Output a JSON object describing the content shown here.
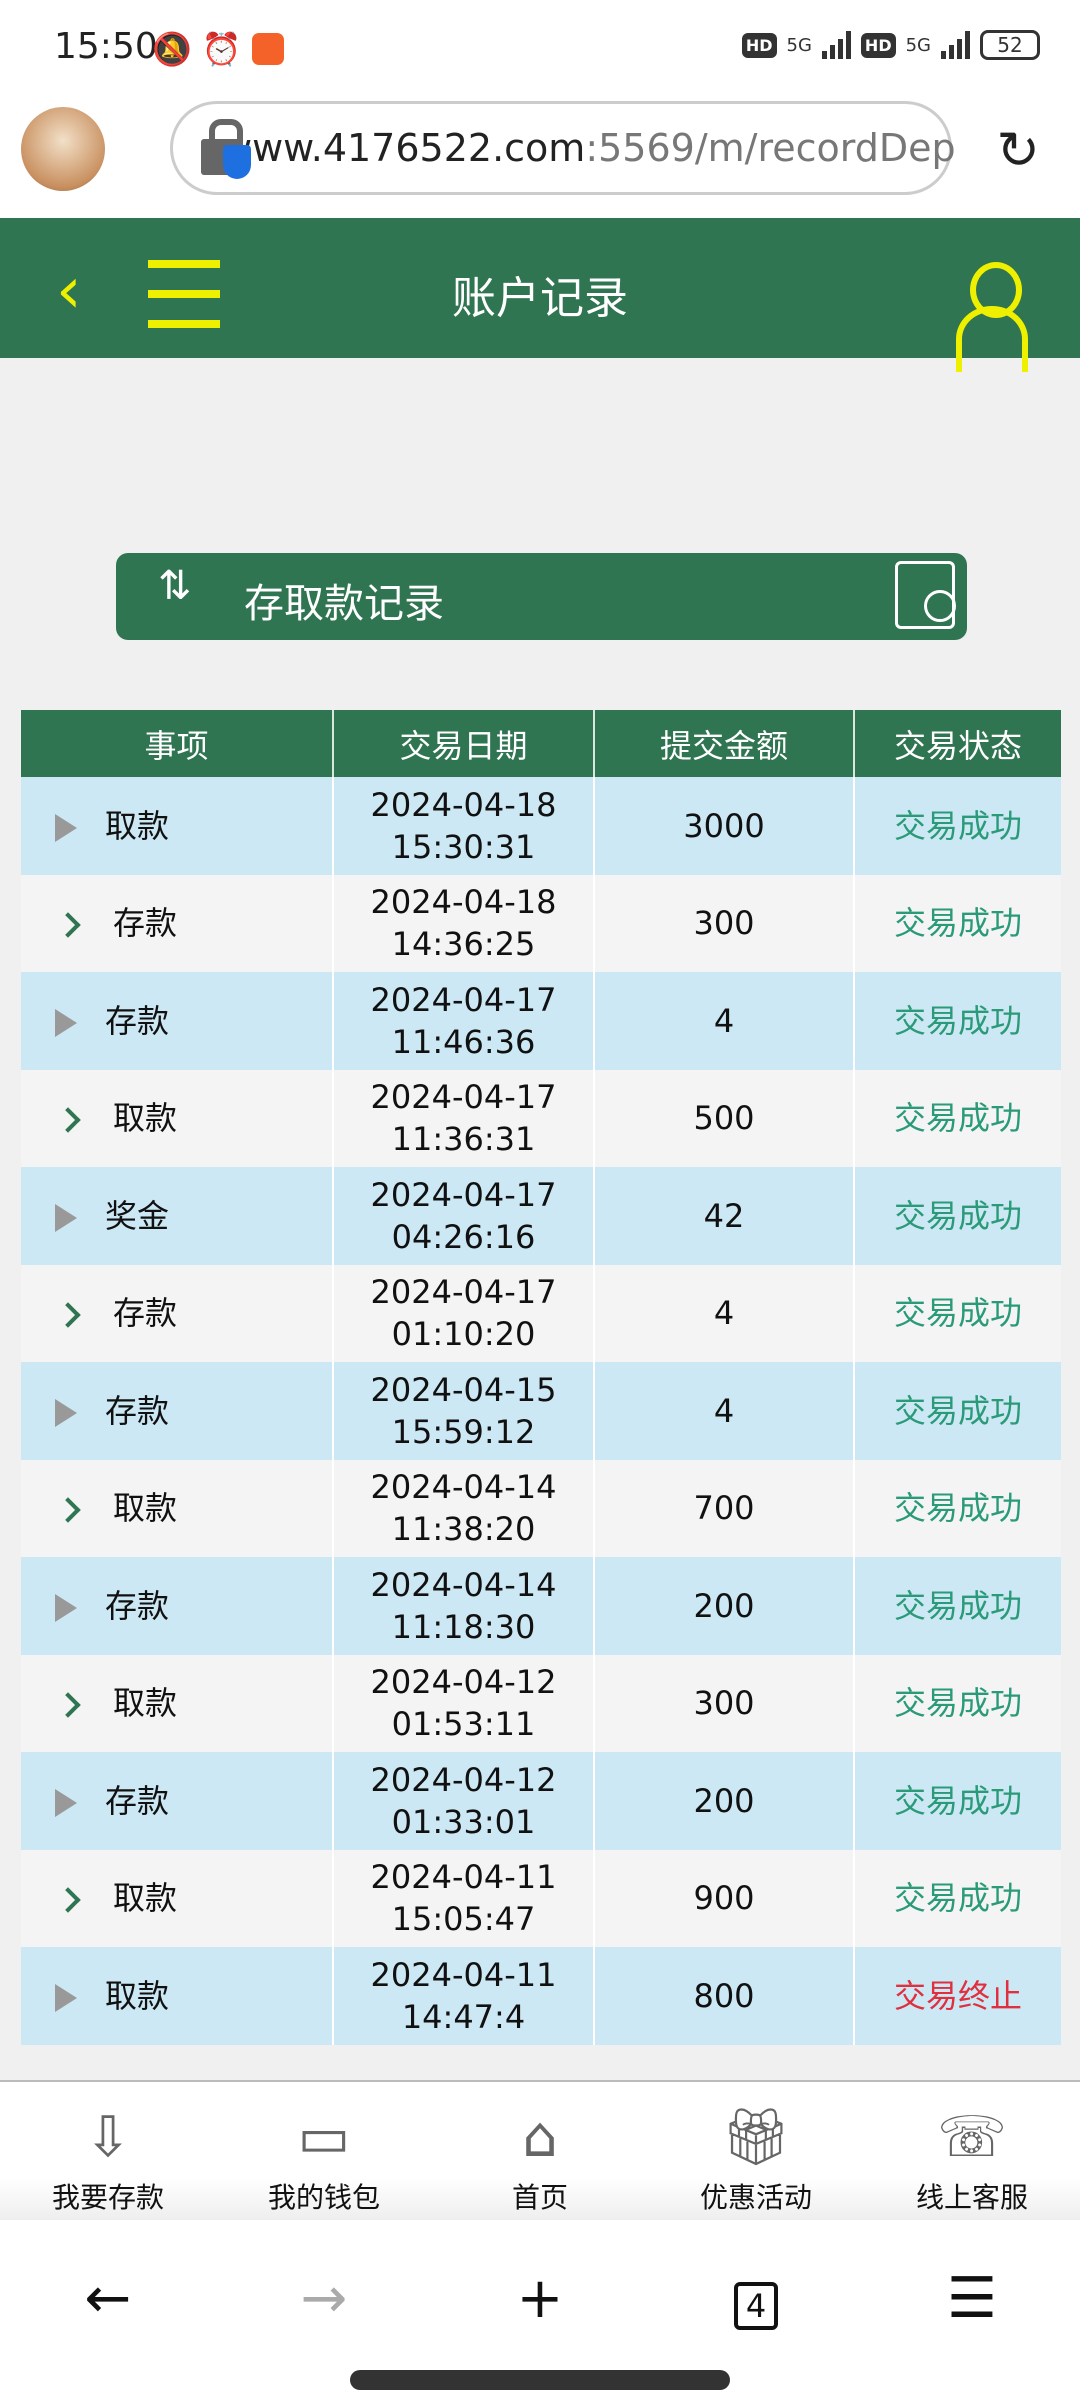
{
  "status_bar": {
    "time": "15:50",
    "battery": "52",
    "network": "5G"
  },
  "browser": {
    "url_host": "www.4176522.com",
    "url_rest": ":5569/m/recordDep",
    "tab_count": "4"
  },
  "header": {
    "title": "账户记录"
  },
  "banner": {
    "title": "存取款记录"
  },
  "table": {
    "columns": [
      "事项",
      "交易日期",
      "提交金额",
      "交易状态"
    ],
    "rows": [
      {
        "item": "取款",
        "date": "2024-04-18",
        "time": "15:30:31",
        "amount": "3000",
        "status": "交易成功"
      },
      {
        "item": "存款",
        "date": "2024-04-18",
        "time": "14:36:25",
        "amount": "300",
        "status": "交易成功"
      },
      {
        "item": "存款",
        "date": "2024-04-17",
        "time": "11:46:36",
        "amount": "4",
        "status": "交易成功"
      },
      {
        "item": "取款",
        "date": "2024-04-17",
        "time": "11:36:31",
        "amount": "500",
        "status": "交易成功"
      },
      {
        "item": "奖金",
        "date": "2024-04-17",
        "time": "04:26:16",
        "amount": "42",
        "status": "交易成功"
      },
      {
        "item": "存款",
        "date": "2024-04-17",
        "time": "01:10:20",
        "amount": "4",
        "status": "交易成功"
      },
      {
        "item": "存款",
        "date": "2024-04-15",
        "time": "15:59:12",
        "amount": "4",
        "status": "交易成功"
      },
      {
        "item": "取款",
        "date": "2024-04-14",
        "time": "11:38:20",
        "amount": "700",
        "status": "交易成功"
      },
      {
        "item": "存款",
        "date": "2024-04-14",
        "time": "11:18:30",
        "amount": "200",
        "status": "交易成功"
      },
      {
        "item": "取款",
        "date": "2024-04-12",
        "time": "01:53:11",
        "amount": "300",
        "status": "交易成功"
      },
      {
        "item": "存款",
        "date": "2024-04-12",
        "time": "01:33:01",
        "amount": "200",
        "status": "交易成功"
      },
      {
        "item": "取款",
        "date": "2024-04-11",
        "time": "15:05:47",
        "amount": "900",
        "status": "交易成功"
      },
      {
        "item": "取款",
        "date": "2024-04-11",
        "time": "14:47:4",
        "amount": "800",
        "status": "交易终止"
      }
    ]
  },
  "tabbar": [
    {
      "label": "我要存款",
      "icon": "deposit-icon"
    },
    {
      "label": "我的钱包",
      "icon": "wallet-icon"
    },
    {
      "label": "首页",
      "icon": "home-icon"
    },
    {
      "label": "优惠活动",
      "icon": "gift-icon"
    },
    {
      "label": "线上客服",
      "icon": "support-icon"
    }
  ],
  "colors": {
    "brand": "#307552",
    "accent": "#eef000",
    "success": "#2a9a78",
    "fail": "#e03040",
    "row_alt": "#cce8f4"
  }
}
